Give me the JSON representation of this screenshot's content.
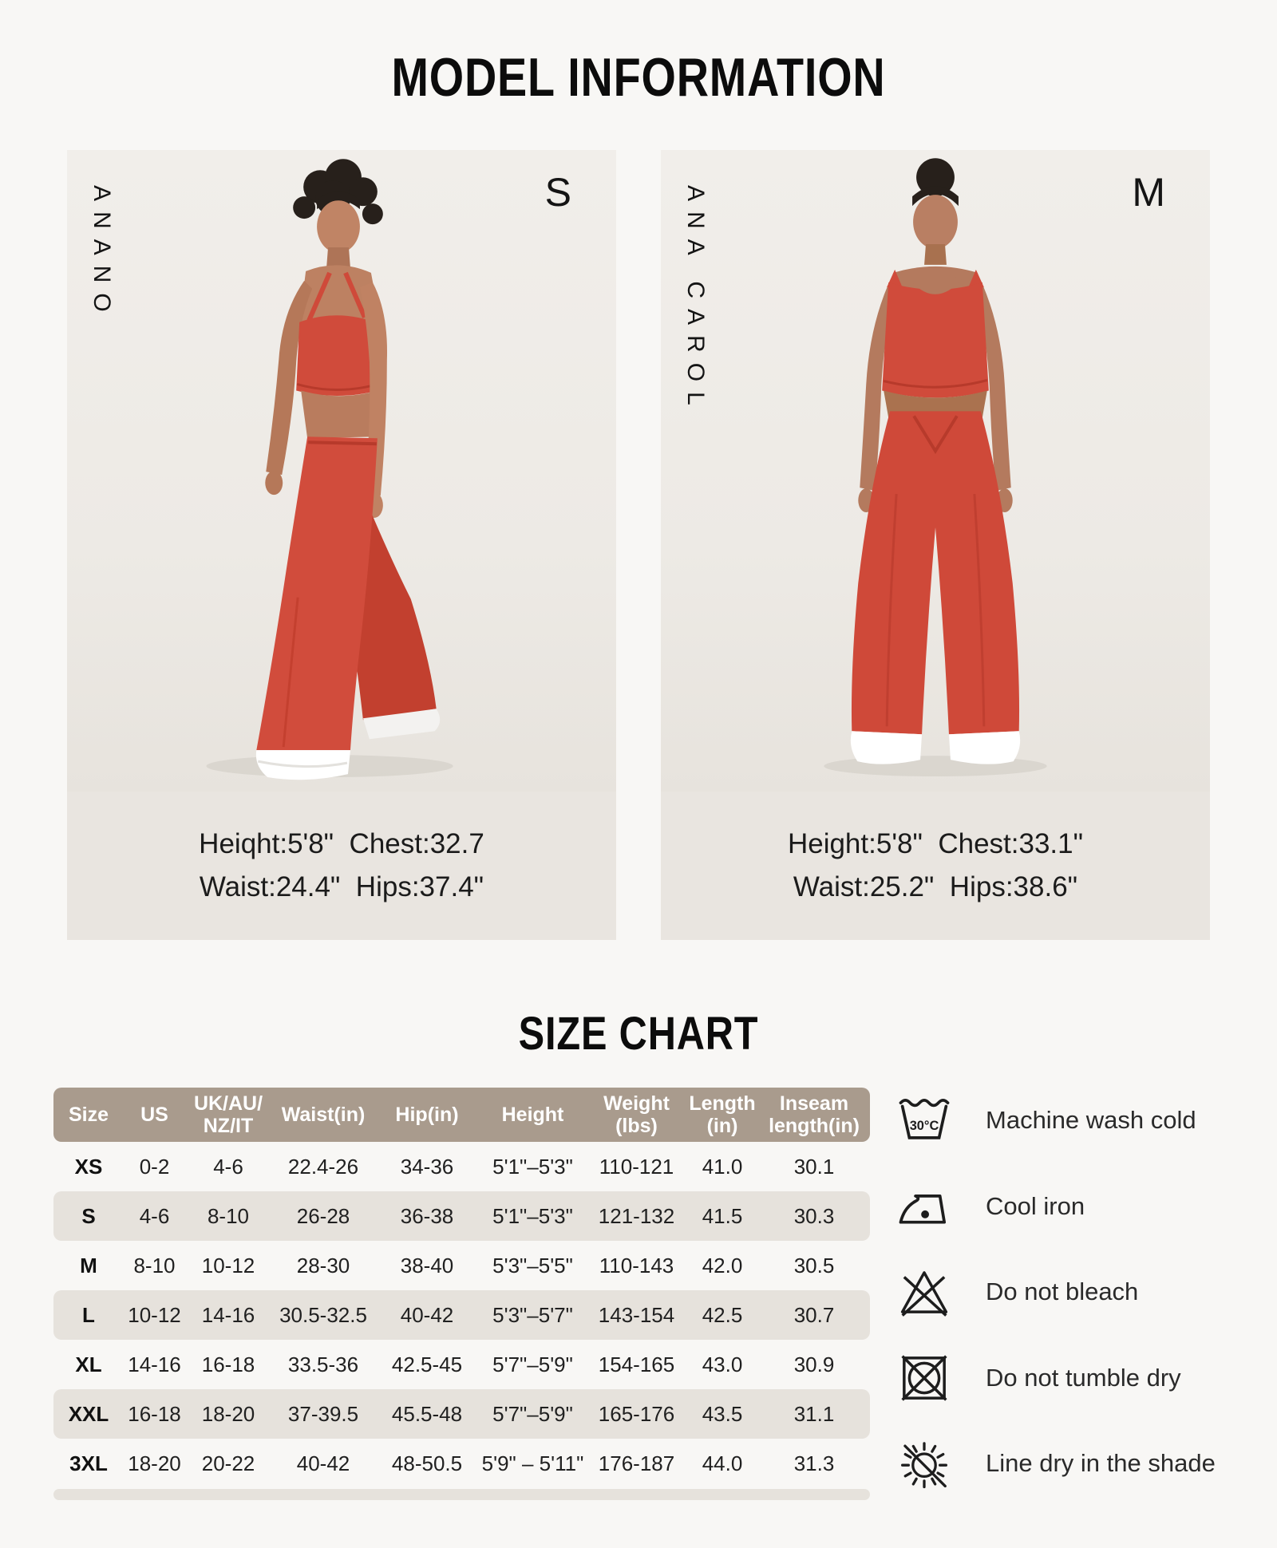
{
  "header": {
    "title": "MODEL INFORMATION",
    "size_chart_title": "SIZE CHART"
  },
  "models": [
    {
      "brand": "ANANO",
      "size_label": "S",
      "measurements_line1": "Heiqht:5'8\"  Chest:32.7",
      "measurements_line2": "Waist:24.4\"  Hips:37.4\""
    },
    {
      "brand": "ANA CAROL",
      "size_label": "M",
      "measurements_line1": "Height:5'8\"  Chest:33.1\"",
      "measurements_line2": "Waist:25.2\"  Hips:38.6\""
    }
  ],
  "size_chart": {
    "type": "table",
    "columns": [
      "Size",
      "US",
      "UK/AU/\nNZ/IT",
      "Waist(in)",
      "Hip(in)",
      "Height",
      "Weight\n(lbs)",
      "Length\n(in)",
      "Inseam\nlength(in)"
    ],
    "rows": [
      [
        "XS",
        "0-2",
        "4-6",
        "22.4-26",
        "34-36",
        "5'1\"–5'3\"",
        "110-121",
        "41.0",
        "30.1"
      ],
      [
        "S",
        "4-6",
        "8-10",
        "26-28",
        "36-38",
        "5'1\"–5'3\"",
        "121-132",
        "41.5",
        "30.3"
      ],
      [
        "M",
        "8-10",
        "10-12",
        "28-30",
        "38-40",
        "5'3\"–5'5\"",
        "110-143",
        "42.0",
        "30.5"
      ],
      [
        "L",
        "10-12",
        "14-16",
        "30.5-32.5",
        "40-42",
        "5'3\"–5'7\"",
        "143-154",
        "42.5",
        "30.7"
      ],
      [
        "XL",
        "14-16",
        "16-18",
        "33.5-36",
        "42.5-45",
        "5'7\"–5'9\"",
        "154-165",
        "43.0",
        "30.9"
      ],
      [
        "XXL",
        "16-18",
        "18-20",
        "37-39.5",
        "45.5-48",
        "5'7\"–5'9\"",
        "165-176",
        "43.5",
        "31.1"
      ],
      [
        "3XL",
        "18-20",
        "20-22",
        "40-42",
        "48-50.5",
        "5'9\" – 5'11\"",
        "176-187",
        "44.0",
        "31.3"
      ]
    ]
  },
  "care_instructions": [
    {
      "icon": "machine-wash-cold-icon",
      "label": "Machine wash cold",
      "temp": "30°C"
    },
    {
      "icon": "cool-iron-icon",
      "label": "Cool iron"
    },
    {
      "icon": "do-not-bleach-icon",
      "label": "Do not bleach"
    },
    {
      "icon": "do-not-tumble-dry-icon",
      "label": "Do not tumble dry"
    },
    {
      "icon": "line-dry-shade-icon",
      "label": "Line dry in the shade"
    }
  ],
  "colors": {
    "accent_red": "#d04b3b",
    "table_header": "#a99b8d",
    "table_row_alt": "#e6e2dc",
    "panel_background": "#edeae5",
    "meta_background": "#e9e5e0",
    "page_background": "#f8f7f5"
  }
}
